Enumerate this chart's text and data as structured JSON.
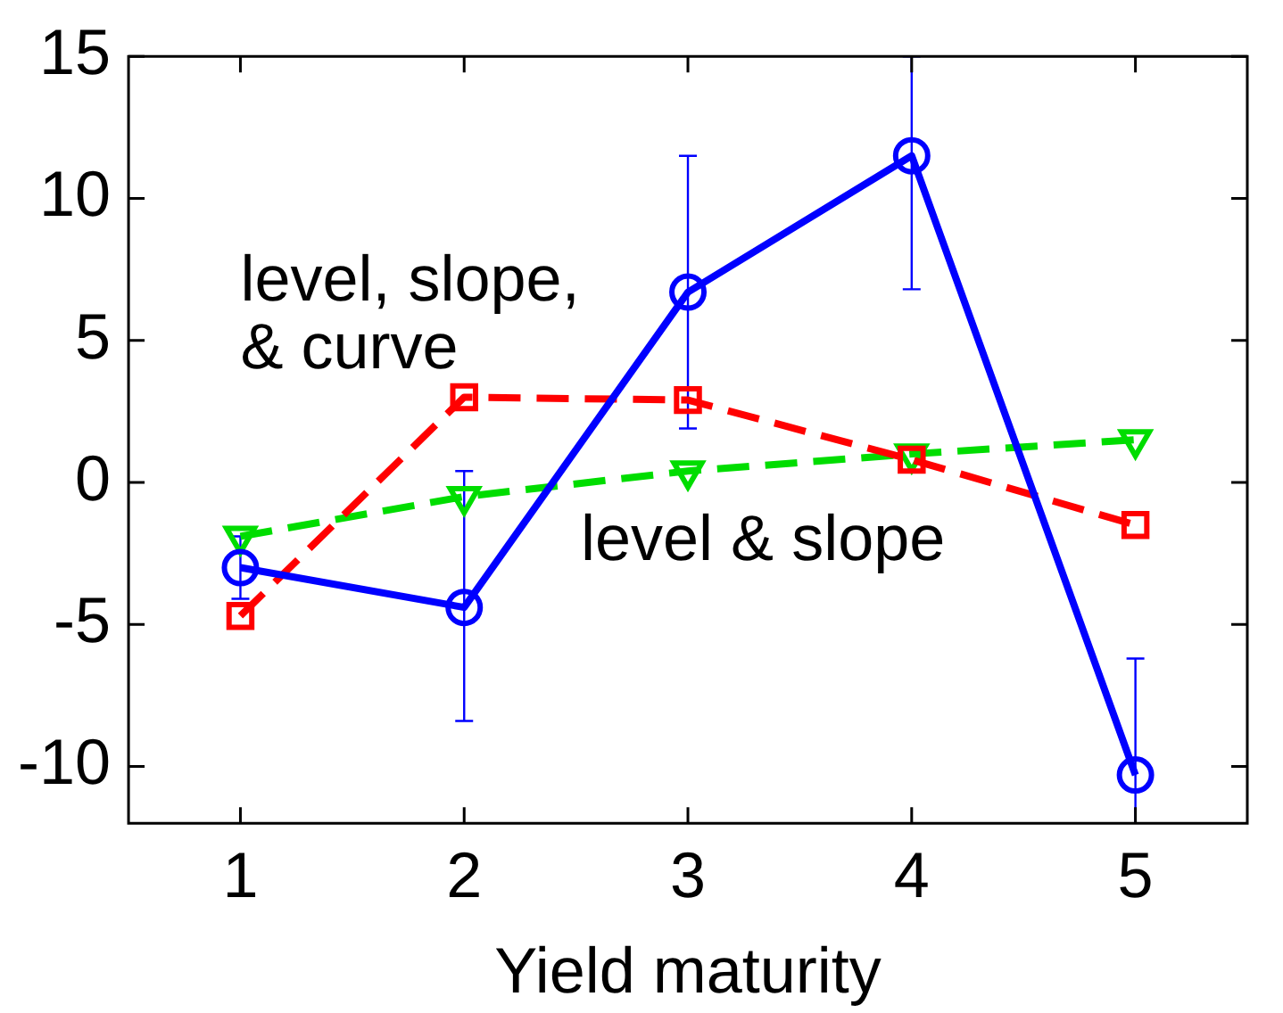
{
  "chart_data": {
    "type": "line",
    "xlabel": "Yield maturity",
    "categories": [
      "1",
      "2",
      "3",
      "4",
      "5"
    ],
    "ylim": [
      -12,
      15
    ],
    "yticks": [
      -10,
      -5,
      0,
      5,
      10,
      15
    ],
    "grid": false,
    "legend": false,
    "series": [
      {
        "name": "level, slope, & curve",
        "color": "#0000ff",
        "marker": "circle",
        "line_style": "solid",
        "values": [
          -3.0,
          -4.4,
          6.7,
          11.5,
          -10.3
        ],
        "errors": [
          [
            -4.1,
            -1.9
          ],
          [
            -8.4,
            0.4
          ],
          [
            1.9,
            11.5
          ],
          [
            6.8,
            15
          ],
          [
            -12,
            -6.2
          ]
        ]
      },
      {
        "color": "#ff0000",
        "marker": "square",
        "line_style": "dashed",
        "values": [
          -4.7,
          3.0,
          2.9,
          0.8,
          -1.5
        ]
      },
      {
        "name": "level & slope",
        "color": "#00dd00",
        "marker": "triangle",
        "line_style": "dashed",
        "values": [
          -1.9,
          -0.5,
          0.4,
          1.0,
          1.5
        ]
      }
    ]
  }
}
